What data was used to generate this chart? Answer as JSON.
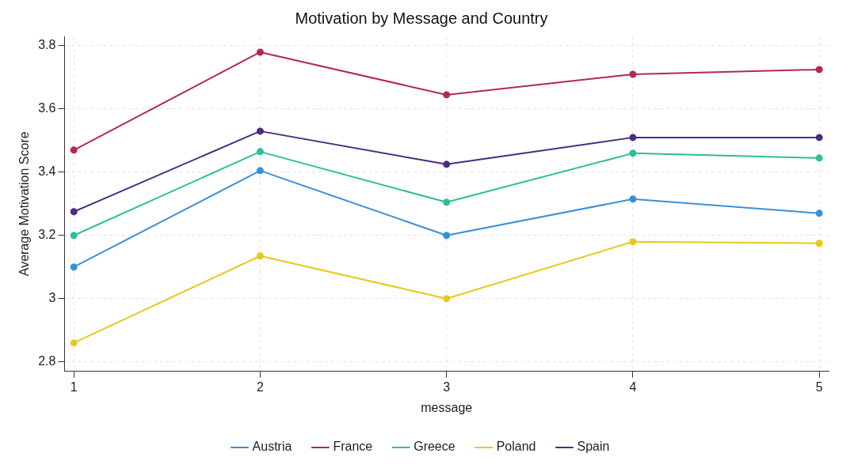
{
  "chart_data": {
    "type": "line",
    "title": "Motivation by Message and Country",
    "xlabel": "message",
    "ylabel": "Average Motivation Score",
    "x": [
      1,
      2,
      3,
      4,
      5
    ],
    "series": [
      {
        "name": "Austria",
        "color": "#3a8fd8",
        "values": [
          3.1,
          3.405,
          3.2,
          3.315,
          3.27
        ]
      },
      {
        "name": "France",
        "color": "#b3275a",
        "values": [
          3.47,
          3.78,
          3.645,
          3.71,
          3.725
        ]
      },
      {
        "name": "Greece",
        "color": "#2bbf9a",
        "values": [
          3.2,
          3.465,
          3.305,
          3.46,
          3.445
        ]
      },
      {
        "name": "Poland",
        "color": "#e8c81c",
        "values": [
          2.86,
          3.135,
          3.0,
          3.18,
          3.175
        ]
      },
      {
        "name": "Spain",
        "color": "#4b2c84",
        "values": [
          3.275,
          3.53,
          3.425,
          3.51,
          3.51
        ]
      }
    ],
    "xlim": [
      0.95,
      5.05
    ],
    "xticks": [
      1,
      2,
      3,
      4,
      5
    ],
    "ylim": [
      2.77,
      3.83
    ],
    "yticks": [
      2.8,
      3,
      3.2,
      3.4,
      3.6,
      3.8
    ],
    "grid": true,
    "legend": "bottom",
    "marker": "circle",
    "line_style": "solid"
  }
}
